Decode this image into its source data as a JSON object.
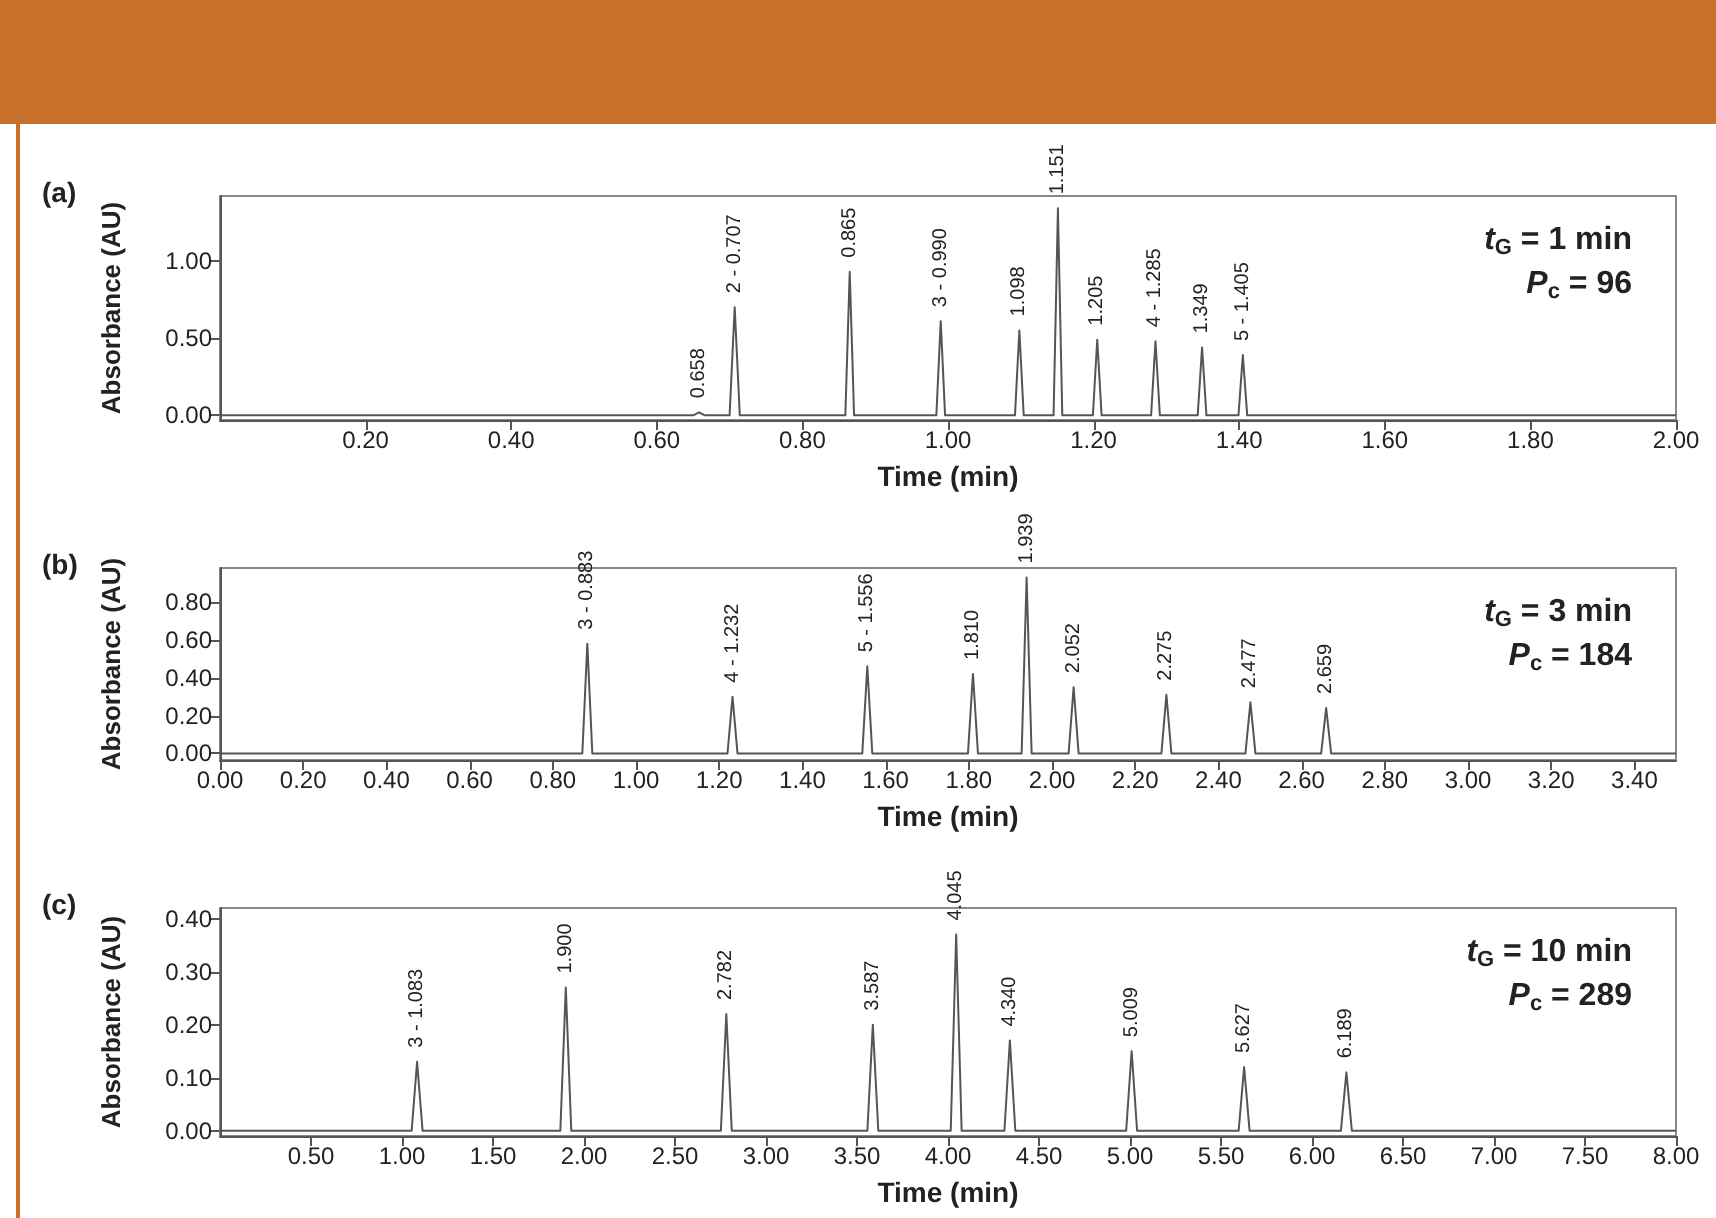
{
  "chart_data": [
    {
      "type": "line",
      "title": "(a)",
      "xlabel": "Time (min)",
      "ylabel": "Absorbance (AU)",
      "marker": "none",
      "grid": false,
      "series": [
        {
          "color": "#555555",
          "x": [
            0,
            0.65,
            0.658,
            0.666,
            0.7,
            0.707,
            0.714,
            0.859,
            0.865,
            0.871,
            0.984,
            0.99,
            0.996,
            1.092,
            1.098,
            1.104,
            1.145,
            1.151,
            1.157,
            1.199,
            1.205,
            1.211,
            1.279,
            1.285,
            1.291,
            1.343,
            1.349,
            1.355,
            1.399,
            1.405,
            1.411,
            2.0
          ],
          "values": [
            0,
            0,
            0.02,
            0,
            0,
            0.7,
            0,
            0,
            0.93,
            0,
            0,
            0.61,
            0,
            0,
            0.55,
            0,
            0,
            1.34,
            0,
            0,
            0.49,
            0,
            0,
            0.48,
            0,
            0,
            0.44,
            0,
            0,
            0.39,
            0,
            0
          ]
        }
      ],
      "xlim": [
        0,
        2.0
      ],
      "xticks": [
        {
          "value": 0.2,
          "label": "0.20"
        },
        {
          "value": 0.4,
          "label": "0.40"
        },
        {
          "value": 0.6,
          "label": "0.60"
        },
        {
          "value": 0.8,
          "label": "0.80"
        },
        {
          "value": 1.0,
          "label": "1.00"
        },
        {
          "value": 1.2,
          "label": "1.20"
        },
        {
          "value": 1.4,
          "label": "1.40"
        },
        {
          "value": 1.6,
          "label": "1.60"
        },
        {
          "value": 1.8,
          "label": "1.80"
        },
        {
          "value": 2.0,
          "label": "2.00"
        }
      ],
      "ylim": [
        -0.03,
        1.42
      ],
      "yticks": [
        {
          "value": 0,
          "label": "0.00"
        },
        {
          "value": 0.5,
          "label": "0.50"
        },
        {
          "value": 1.0,
          "label": "1.00"
        }
      ],
      "annotations": [
        {
          "text": "0.658",
          "x": 0.658,
          "y": 0.02
        },
        {
          "text": "2 - 0.707",
          "x": 0.707,
          "y": 0.7
        },
        {
          "text": "0.865",
          "x": 0.865,
          "y": 0.93
        },
        {
          "text": "3 - 0.990",
          "x": 0.99,
          "y": 0.61
        },
        {
          "text": "1.098",
          "x": 1.098,
          "y": 0.55
        },
        {
          "text": "1.151",
          "x": 1.151,
          "y": 1.34
        },
        {
          "text": "1.205",
          "x": 1.205,
          "y": 0.49
        },
        {
          "text": "4 - 1.285",
          "x": 1.285,
          "y": 0.48
        },
        {
          "text": "1.349",
          "x": 1.349,
          "y": 0.44
        },
        {
          "text": "5 - 1.405",
          "x": 1.405,
          "y": 0.39
        },
        "t$_{G}$ = 1 min",
        "P$_{c}$ = 96"
      ]
    },
    {
      "type": "line",
      "title": "(b)",
      "xlabel": "Time (min)",
      "ylabel": "Absorbance (AU)",
      "marker": "none",
      "grid": false,
      "series": [
        {
          "color": "#555555",
          "x": [
            0,
            0.871,
            0.883,
            0.895,
            1.22,
            1.232,
            1.244,
            1.544,
            1.556,
            1.568,
            1.798,
            1.81,
            1.822,
            1.927,
            1.939,
            1.951,
            2.04,
            2.052,
            2.064,
            2.263,
            2.275,
            2.287,
            2.465,
            2.477,
            2.489,
            2.647,
            2.659,
            2.671,
            3.5
          ],
          "values": [
            0,
            0,
            0.58,
            0,
            0,
            0.3,
            0,
            0,
            0.46,
            0,
            0,
            0.42,
            0,
            0,
            0.93,
            0,
            0,
            0.35,
            0,
            0,
            0.31,
            0,
            0,
            0.27,
            0,
            0,
            0.24,
            0,
            0
          ]
        }
      ],
      "xlim": [
        0,
        3.5
      ],
      "xticks": [
        {
          "value": 0,
          "label": "0.00"
        },
        {
          "value": 0.2,
          "label": "0.20"
        },
        {
          "value": 0.4,
          "label": "0.40"
        },
        {
          "value": 0.6,
          "label": "0.60"
        },
        {
          "value": 0.8,
          "label": "0.80"
        },
        {
          "value": 1.0,
          "label": "1.00"
        },
        {
          "value": 1.2,
          "label": "1.20"
        },
        {
          "value": 1.4,
          "label": "1.40"
        },
        {
          "value": 1.6,
          "label": "1.60"
        },
        {
          "value": 1.8,
          "label": "1.80"
        },
        {
          "value": 2.0,
          "label": "2.00"
        },
        {
          "value": 2.2,
          "label": "2.20"
        },
        {
          "value": 2.4,
          "label": "2.40"
        },
        {
          "value": 2.6,
          "label": "2.60"
        },
        {
          "value": 2.8,
          "label": "2.80"
        },
        {
          "value": 3.0,
          "label": "3.00"
        },
        {
          "value": 3.2,
          "label": "3.20"
        },
        {
          "value": 3.4,
          "label": "3.40"
        }
      ],
      "ylim": [
        -0.035,
        0.98
      ],
      "yticks": [
        {
          "value": 0,
          "label": "0.00"
        },
        {
          "value": 0.2,
          "label": "0.20"
        },
        {
          "value": 0.4,
          "label": "0.40"
        },
        {
          "value": 0.6,
          "label": "0.60"
        },
        {
          "value": 0.8,
          "label": "0.80"
        }
      ],
      "annotations": [
        {
          "text": "3 - 0.883",
          "x": 0.883,
          "y": 0.58
        },
        {
          "text": "4 - 1.232",
          "x": 1.232,
          "y": 0.3
        },
        {
          "text": "5 - 1.556",
          "x": 1.556,
          "y": 0.46
        },
        {
          "text": "1.810",
          "x": 1.81,
          "y": 0.42
        },
        {
          "text": "1.939",
          "x": 1.939,
          "y": 0.93
        },
        {
          "text": "2.052",
          "x": 2.052,
          "y": 0.35
        },
        {
          "text": "2.275",
          "x": 2.275,
          "y": 0.31
        },
        {
          "text": "2.477",
          "x": 2.477,
          "y": 0.27
        },
        {
          "text": "2.659",
          "x": 2.659,
          "y": 0.24
        },
        "t$_{G}$ = 3 min",
        "P$_{c}$ = 184"
      ]
    },
    {
      "type": "line",
      "title": "(c)",
      "xlabel": "Time (min)",
      "ylabel": "Absorbance (AU)",
      "marker": "none",
      "grid": false,
      "series": [
        {
          "color": "#555555",
          "x": [
            0,
            1.053,
            1.083,
            1.113,
            1.87,
            1.9,
            1.93,
            2.752,
            2.782,
            2.812,
            3.557,
            3.587,
            3.617,
            4.015,
            4.045,
            4.075,
            4.31,
            4.34,
            4.37,
            4.979,
            5.009,
            5.039,
            5.597,
            5.627,
            5.657,
            6.159,
            6.189,
            6.219,
            8.0
          ],
          "values": [
            0,
            0,
            0.13,
            0,
            0,
            0.27,
            0,
            0,
            0.22,
            0,
            0,
            0.2,
            0,
            0,
            0.37,
            0,
            0,
            0.17,
            0,
            0,
            0.15,
            0,
            0,
            0.12,
            0,
            0,
            0.11,
            0,
            0
          ]
        }
      ],
      "xlim": [
        0,
        8.0
      ],
      "xticks": [
        {
          "value": 0.5,
          "label": "0.50"
        },
        {
          "value": 1.0,
          "label": "1.00"
        },
        {
          "value": 1.5,
          "label": "1.50"
        },
        {
          "value": 2.0,
          "label": "2.00"
        },
        {
          "value": 2.5,
          "label": "2.50"
        },
        {
          "value": 3.0,
          "label": "3.00"
        },
        {
          "value": 3.5,
          "label": "3.50"
        },
        {
          "value": 4.0,
          "label": "4.00"
        },
        {
          "value": 4.5,
          "label": "4.50"
        },
        {
          "value": 5.0,
          "label": "5.00"
        },
        {
          "value": 5.5,
          "label": "5.50"
        },
        {
          "value": 6.0,
          "label": "6.00"
        },
        {
          "value": 6.5,
          "label": "6.50"
        },
        {
          "value": 7.0,
          "label": "7.00"
        },
        {
          "value": 7.5,
          "label": "7.50"
        },
        {
          "value": 8.0,
          "label": "8.00"
        }
      ],
      "ylim": [
        -0.01,
        0.42
      ],
      "yticks": [
        {
          "value": 0,
          "label": "0.00"
        },
        {
          "value": 0.1,
          "label": "0.10"
        },
        {
          "value": 0.2,
          "label": "0.20"
        },
        {
          "value": 0.3,
          "label": "0.30"
        },
        {
          "value": 0.4,
          "label": "0.40"
        }
      ],
      "annotations": [
        {
          "text": "3 - 1.083",
          "x": 1.083,
          "y": 0.13
        },
        {
          "text": "1.900",
          "x": 1.9,
          "y": 0.27
        },
        {
          "text": "2.782",
          "x": 2.782,
          "y": 0.22
        },
        {
          "text": "3.587",
          "x": 3.587,
          "y": 0.2
        },
        {
          "text": "4.045",
          "x": 4.045,
          "y": 0.37
        },
        {
          "text": "4.340",
          "x": 4.34,
          "y": 0.17
        },
        {
          "text": "5.009",
          "x": 5.009,
          "y": 0.15
        },
        {
          "text": "5.627",
          "x": 5.627,
          "y": 0.12
        },
        {
          "text": "6.189",
          "x": 6.189,
          "y": 0.11
        },
        "t$_{G}$ = 10 min",
        "P$_{c}$ = 289"
      ]
    }
  ]
}
